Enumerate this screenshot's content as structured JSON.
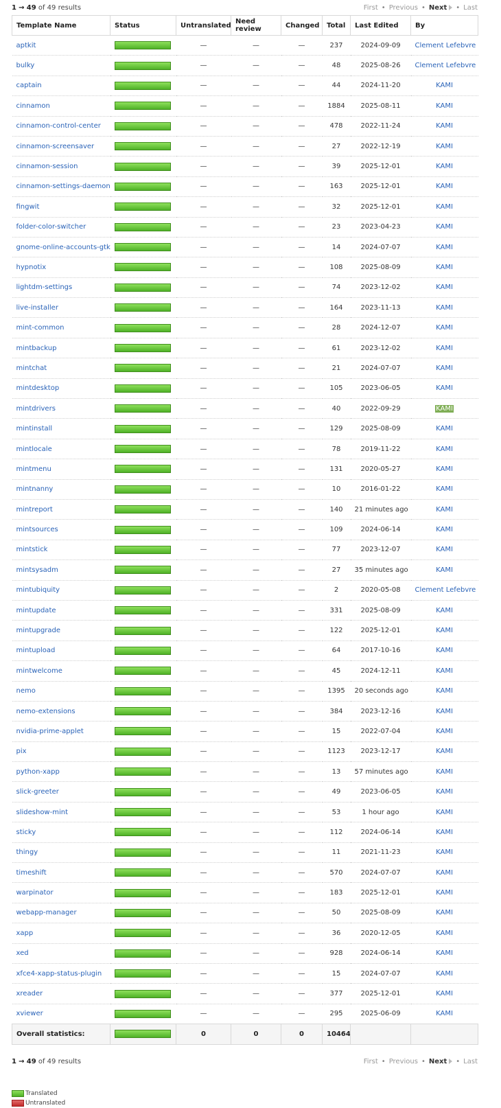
{
  "pager": {
    "range_start": "1",
    "arrow": "→",
    "range_end": "49",
    "of_text": "of 49 results",
    "first": "First",
    "previous": "Previous",
    "next": "Next",
    "last": "Last",
    "sep": "•"
  },
  "columns": {
    "name": "Template Name",
    "status": "Status",
    "untranslated": "Untranslated",
    "need_review": "Need review",
    "changed": "Changed",
    "total": "Total",
    "last_edited": "Last Edited",
    "by": "By"
  },
  "rows": [
    {
      "name": "aptkit",
      "untranslated": "—",
      "need_review": "—",
      "changed": "—",
      "total": "237",
      "edited": "2024-09-09",
      "by": "Clement Lefebvre",
      "progress": 1.0
    },
    {
      "name": "bulky",
      "untranslated": "—",
      "need_review": "—",
      "changed": "—",
      "total": "48",
      "edited": "2025-08-26",
      "by": "Clement Lefebvre",
      "progress": 1.0
    },
    {
      "name": "captain",
      "untranslated": "—",
      "need_review": "—",
      "changed": "—",
      "total": "44",
      "edited": "2024-11-20",
      "by": "KAMI",
      "progress": 1.0
    },
    {
      "name": "cinnamon",
      "untranslated": "—",
      "need_review": "—",
      "changed": "—",
      "total": "1884",
      "edited": "2025-08-11",
      "by": "KAMI",
      "progress": 1.0
    },
    {
      "name": "cinnamon-control-center",
      "untranslated": "—",
      "need_review": "—",
      "changed": "—",
      "total": "478",
      "edited": "2022-11-24",
      "by": "KAMI",
      "progress": 1.0
    },
    {
      "name": "cinnamon-screensaver",
      "untranslated": "—",
      "need_review": "—",
      "changed": "—",
      "total": "27",
      "edited": "2022-12-19",
      "by": "KAMI",
      "progress": 1.0
    },
    {
      "name": "cinnamon-session",
      "untranslated": "—",
      "need_review": "—",
      "changed": "—",
      "total": "39",
      "edited": "2025-12-01",
      "by": "KAMI",
      "progress": 1.0
    },
    {
      "name": "cinnamon-settings-daemon",
      "untranslated": "—",
      "need_review": "—",
      "changed": "—",
      "total": "163",
      "edited": "2025-12-01",
      "by": "KAMI",
      "progress": 1.0
    },
    {
      "name": "fingwit",
      "untranslated": "—",
      "need_review": "—",
      "changed": "—",
      "total": "32",
      "edited": "2025-12-01",
      "by": "KAMI",
      "progress": 1.0
    },
    {
      "name": "folder-color-switcher",
      "untranslated": "—",
      "need_review": "—",
      "changed": "—",
      "total": "23",
      "edited": "2023-04-23",
      "by": "KAMI",
      "progress": 1.0
    },
    {
      "name": "gnome-online-accounts-gtk",
      "untranslated": "—",
      "need_review": "—",
      "changed": "—",
      "total": "14",
      "edited": "2024-07-07",
      "by": "KAMI",
      "progress": 1.0
    },
    {
      "name": "hypnotix",
      "untranslated": "—",
      "need_review": "—",
      "changed": "—",
      "total": "108",
      "edited": "2025-08-09",
      "by": "KAMI",
      "progress": 1.0
    },
    {
      "name": "lightdm-settings",
      "untranslated": "—",
      "need_review": "—",
      "changed": "—",
      "total": "74",
      "edited": "2023-12-02",
      "by": "KAMI",
      "progress": 1.0
    },
    {
      "name": "live-installer",
      "untranslated": "—",
      "need_review": "—",
      "changed": "—",
      "total": "164",
      "edited": "2023-11-13",
      "by": "KAMI",
      "progress": 1.0
    },
    {
      "name": "mint-common",
      "untranslated": "—",
      "need_review": "—",
      "changed": "—",
      "total": "28",
      "edited": "2024-12-07",
      "by": "KAMI",
      "progress": 1.0
    },
    {
      "name": "mintbackup",
      "untranslated": "—",
      "need_review": "—",
      "changed": "—",
      "total": "61",
      "edited": "2023-12-02",
      "by": "KAMI",
      "progress": 1.0
    },
    {
      "name": "mintchat",
      "untranslated": "—",
      "need_review": "—",
      "changed": "—",
      "total": "21",
      "edited": "2024-07-07",
      "by": "KAMI",
      "progress": 1.0
    },
    {
      "name": "mintdesktop",
      "untranslated": "—",
      "need_review": "—",
      "changed": "—",
      "total": "105",
      "edited": "2023-06-05",
      "by": "KAMI",
      "progress": 1.0
    },
    {
      "name": "mintdrivers",
      "untranslated": "—",
      "need_review": "—",
      "changed": "—",
      "total": "40",
      "edited": "2022-09-29",
      "by": "KAMI",
      "progress": 1.0,
      "highlight": true
    },
    {
      "name": "mintinstall",
      "untranslated": "—",
      "need_review": "—",
      "changed": "—",
      "total": "129",
      "edited": "2025-08-09",
      "by": "KAMI",
      "progress": 1.0
    },
    {
      "name": "mintlocale",
      "untranslated": "—",
      "need_review": "—",
      "changed": "—",
      "total": "78",
      "edited": "2019-11-22",
      "by": "KAMI",
      "progress": 1.0
    },
    {
      "name": "mintmenu",
      "untranslated": "—",
      "need_review": "—",
      "changed": "—",
      "total": "131",
      "edited": "2020-05-27",
      "by": "KAMI",
      "progress": 1.0
    },
    {
      "name": "mintnanny",
      "untranslated": "—",
      "need_review": "—",
      "changed": "—",
      "total": "10",
      "edited": "2016-01-22",
      "by": "KAMI",
      "progress": 1.0
    },
    {
      "name": "mintreport",
      "untranslated": "—",
      "need_review": "—",
      "changed": "—",
      "total": "140",
      "edited": "21 minutes ago",
      "by": "KAMI",
      "progress": 1.0
    },
    {
      "name": "mintsources",
      "untranslated": "—",
      "need_review": "—",
      "changed": "—",
      "total": "109",
      "edited": "2024-06-14",
      "by": "KAMI",
      "progress": 1.0
    },
    {
      "name": "mintstick",
      "untranslated": "—",
      "need_review": "—",
      "changed": "—",
      "total": "77",
      "edited": "2023-12-07",
      "by": "KAMI",
      "progress": 1.0
    },
    {
      "name": "mintsysadm",
      "untranslated": "—",
      "need_review": "—",
      "changed": "—",
      "total": "27",
      "edited": "35 minutes ago",
      "by": "KAMI",
      "progress": 1.0
    },
    {
      "name": "mintubiquity",
      "untranslated": "—",
      "need_review": "—",
      "changed": "—",
      "total": "2",
      "edited": "2020-05-08",
      "by": "Clement Lefebvre",
      "progress": 1.0
    },
    {
      "name": "mintupdate",
      "untranslated": "—",
      "need_review": "—",
      "changed": "—",
      "total": "331",
      "edited": "2025-08-09",
      "by": "KAMI",
      "progress": 1.0
    },
    {
      "name": "mintupgrade",
      "untranslated": "—",
      "need_review": "—",
      "changed": "—",
      "total": "122",
      "edited": "2025-12-01",
      "by": "KAMI",
      "progress": 1.0
    },
    {
      "name": "mintupload",
      "untranslated": "—",
      "need_review": "—",
      "changed": "—",
      "total": "64",
      "edited": "2017-10-16",
      "by": "KAMI",
      "progress": 1.0
    },
    {
      "name": "mintwelcome",
      "untranslated": "—",
      "need_review": "—",
      "changed": "—",
      "total": "45",
      "edited": "2024-12-11",
      "by": "KAMI",
      "progress": 1.0
    },
    {
      "name": "nemo",
      "untranslated": "—",
      "need_review": "—",
      "changed": "—",
      "total": "1395",
      "edited": "20 seconds ago",
      "by": "KAMI",
      "progress": 1.0
    },
    {
      "name": "nemo-extensions",
      "untranslated": "—",
      "need_review": "—",
      "changed": "—",
      "total": "384",
      "edited": "2023-12-16",
      "by": "KAMI",
      "progress": 1.0
    },
    {
      "name": "nvidia-prime-applet",
      "untranslated": "—",
      "need_review": "—",
      "changed": "—",
      "total": "15",
      "edited": "2022-07-04",
      "by": "KAMI",
      "progress": 1.0
    },
    {
      "name": "pix",
      "untranslated": "—",
      "need_review": "—",
      "changed": "—",
      "total": "1123",
      "edited": "2023-12-17",
      "by": "KAMI",
      "progress": 1.0
    },
    {
      "name": "python-xapp",
      "untranslated": "—",
      "need_review": "—",
      "changed": "—",
      "total": "13",
      "edited": "57 minutes ago",
      "by": "KAMI",
      "progress": 1.0
    },
    {
      "name": "slick-greeter",
      "untranslated": "—",
      "need_review": "—",
      "changed": "—",
      "total": "49",
      "edited": "2023-06-05",
      "by": "KAMI",
      "progress": 1.0
    },
    {
      "name": "slideshow-mint",
      "untranslated": "—",
      "need_review": "—",
      "changed": "—",
      "total": "53",
      "edited": "1 hour ago",
      "by": "KAMI",
      "progress": 1.0
    },
    {
      "name": "sticky",
      "untranslated": "—",
      "need_review": "—",
      "changed": "—",
      "total": "112",
      "edited": "2024-06-14",
      "by": "KAMI",
      "progress": 1.0
    },
    {
      "name": "thingy",
      "untranslated": "—",
      "need_review": "—",
      "changed": "—",
      "total": "11",
      "edited": "2021-11-23",
      "by": "KAMI",
      "progress": 1.0
    },
    {
      "name": "timeshift",
      "untranslated": "—",
      "need_review": "—",
      "changed": "—",
      "total": "570",
      "edited": "2024-07-07",
      "by": "KAMI",
      "progress": 1.0
    },
    {
      "name": "warpinator",
      "untranslated": "—",
      "need_review": "—",
      "changed": "—",
      "total": "183",
      "edited": "2025-12-01",
      "by": "KAMI",
      "progress": 1.0
    },
    {
      "name": "webapp-manager",
      "untranslated": "—",
      "need_review": "—",
      "changed": "—",
      "total": "50",
      "edited": "2025-08-09",
      "by": "KAMI",
      "progress": 1.0
    },
    {
      "name": "xapp",
      "untranslated": "—",
      "need_review": "—",
      "changed": "—",
      "total": "36",
      "edited": "2020-12-05",
      "by": "KAMI",
      "progress": 1.0
    },
    {
      "name": "xed",
      "untranslated": "—",
      "need_review": "—",
      "changed": "—",
      "total": "928",
      "edited": "2024-06-14",
      "by": "KAMI",
      "progress": 1.0
    },
    {
      "name": "xfce4-xapp-status-plugin",
      "untranslated": "—",
      "need_review": "—",
      "changed": "—",
      "total": "15",
      "edited": "2024-07-07",
      "by": "KAMI",
      "progress": 1.0
    },
    {
      "name": "xreader",
      "untranslated": "—",
      "need_review": "—",
      "changed": "—",
      "total": "377",
      "edited": "2025-12-01",
      "by": "KAMI",
      "progress": 1.0
    },
    {
      "name": "xviewer",
      "untranslated": "—",
      "need_review": "—",
      "changed": "—",
      "total": "295",
      "edited": "2025-06-09",
      "by": "KAMI",
      "progress": 1.0
    }
  ],
  "overall": {
    "label": "Overall statistics:",
    "untranslated": "0",
    "need_review": "0",
    "changed": "0",
    "total": "10464",
    "progress": 1.0
  },
  "legend": {
    "translated": "Translated",
    "untranslated": "Untranslated"
  },
  "colors": {
    "link": "#2a63b8",
    "translated_bar": "#4fb227",
    "untranslated_bar": "#c22a2a",
    "highlight": "#7fae55"
  }
}
